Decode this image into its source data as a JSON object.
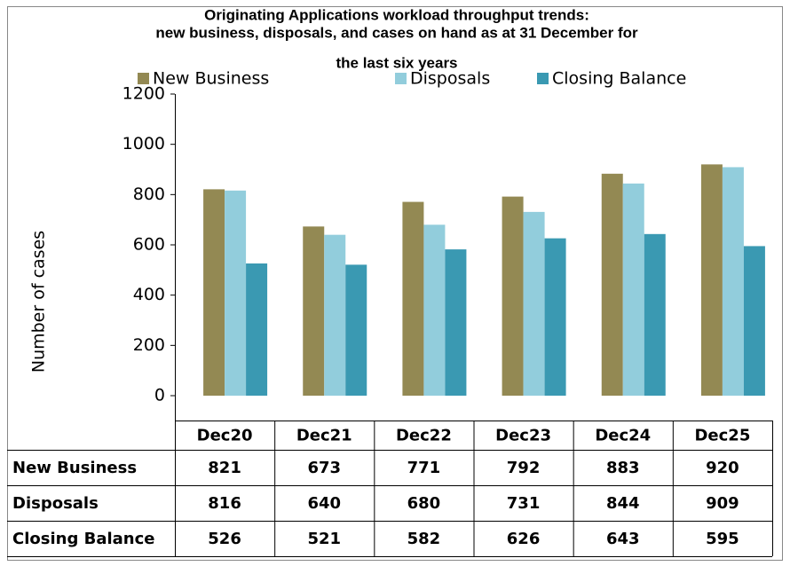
{
  "chart_data": {
    "type": "bar",
    "title": [
      "Originating Applications workload throughput trends:",
      "new business, disposals, and cases on hand as at 31 December for",
      "the last six years"
    ],
    "y_label": "Number of cases",
    "categories": [
      "Dec20",
      "Dec21",
      "Dec22",
      "Dec23",
      "Dec24",
      "Dec25"
    ],
    "series": [
      {
        "name": "New Business",
        "color": "#938953",
        "values": [
          821,
          673,
          771,
          792,
          883,
          920
        ]
      },
      {
        "name": "Disposals",
        "color": "#92cddc",
        "values": [
          816,
          640,
          680,
          731,
          844,
          909
        ]
      },
      {
        "name": "Closing Balance",
        "color": "#3a99b2",
        "values": [
          526,
          521,
          582,
          626,
          643,
          595
        ]
      }
    ],
    "ylim": [
      0,
      1200
    ],
    "yticks": [
      0,
      200,
      400,
      600,
      800,
      1000,
      1200
    ],
    "grid": false,
    "legend": "top"
  }
}
